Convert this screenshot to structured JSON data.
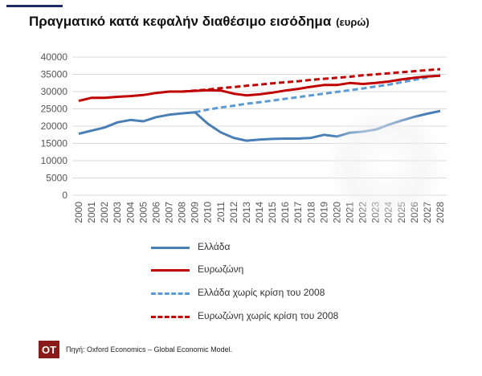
{
  "header": {
    "title": "Πραγματικό κατά κεφαλήν διαθέσιμο εισόδημα",
    "unit": "(ευρώ)"
  },
  "footer": {
    "logo_text": "OT",
    "source": "Πηγή: Oxford Economics – Global Economic Model."
  },
  "colors": {
    "greece": "#4a7fb5",
    "eurozone": "#c00000",
    "greece_dashed": "#5b9bd5",
    "eurozone_dashed": "#c00000",
    "grid": "#d9d9d9",
    "axis_text": "#555555",
    "logo_bg": "#8b1a1a"
  },
  "chart_data": {
    "type": "line",
    "title": "Πραγματικό κατά κεφαλήν διαθέσιμο εισόδημα (ευρώ)",
    "xlabel": "",
    "ylabel": "",
    "ylim": [
      0,
      40000
    ],
    "yticks": [
      0,
      5000,
      10000,
      15000,
      20000,
      25000,
      30000,
      35000,
      40000
    ],
    "grid": true,
    "legend_placement": "bottom",
    "x": [
      "2000",
      "2001",
      "2002",
      "2003",
      "2004",
      "2005",
      "2006",
      "2007",
      "2008",
      "2009",
      "2010",
      "2011",
      "2012",
      "2013",
      "2014",
      "2015",
      "2016",
      "2017",
      "2018",
      "2019",
      "2020",
      "2021",
      "2022",
      "2023",
      "2024",
      "2025",
      "2026",
      "2027",
      "2028"
    ],
    "series": [
      {
        "name": "Ελλάδα",
        "style": "solid",
        "values": [
          17800,
          18700,
          19600,
          21100,
          21800,
          21400,
          22600,
          23300,
          23700,
          24000,
          20700,
          18200,
          16600,
          15800,
          16100,
          16300,
          16400,
          16400,
          16600,
          17500,
          17000,
          18100,
          18400,
          19000,
          20400,
          21600,
          22700,
          23600,
          24400
        ]
      },
      {
        "name": "Ευρωζώνη",
        "style": "solid",
        "values": [
          27300,
          28200,
          28200,
          28500,
          28700,
          29000,
          29600,
          30000,
          30000,
          30200,
          30400,
          30300,
          29400,
          28900,
          29200,
          29700,
          30300,
          30800,
          31400,
          31900,
          31900,
          32500,
          32200,
          32500,
          32900,
          33500,
          34000,
          34400,
          34600
        ]
      },
      {
        "name": "Ελλάδα χωρίς κρίση του 2008",
        "style": "dashed",
        "values": [
          null,
          null,
          null,
          null,
          null,
          null,
          null,
          null,
          null,
          24000,
          24800,
          25400,
          25900,
          26500,
          26900,
          27400,
          27900,
          28400,
          28900,
          29400,
          29900,
          30400,
          30900,
          31500,
          32000,
          32700,
          33400,
          34100,
          34900
        ]
      },
      {
        "name": "Ευρωζώνη χωρίς κρίση του 2008",
        "style": "dashed",
        "values": [
          null,
          null,
          null,
          null,
          null,
          null,
          null,
          null,
          30000,
          30300,
          30600,
          31000,
          31300,
          31700,
          32000,
          32400,
          32700,
          33000,
          33400,
          33700,
          34000,
          34300,
          34700,
          35000,
          35300,
          35600,
          35900,
          36200,
          36500
        ]
      }
    ]
  }
}
